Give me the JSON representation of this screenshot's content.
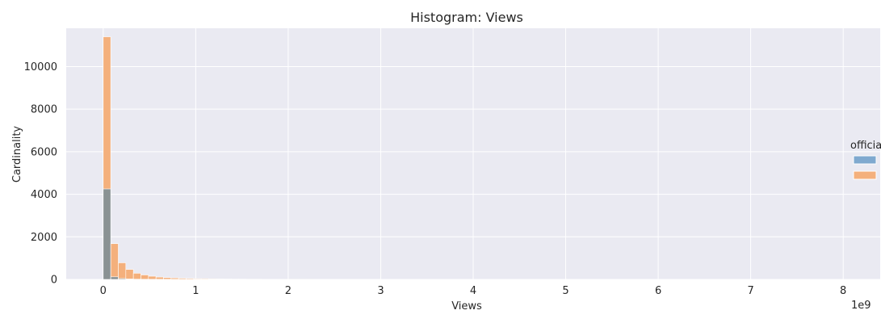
{
  "chart_data": {
    "type": "histogram",
    "title": "Histogram: Views",
    "xlabel": "Views",
    "ylabel": "Cardinality",
    "x_offset_label": "1e9",
    "xlim": [
      -0.4,
      8.4
    ],
    "ylim": [
      0,
      11800
    ],
    "x_ticks": [
      0,
      1,
      2,
      3,
      4,
      5,
      6,
      7,
      8
    ],
    "x_tick_labels": [
      "0",
      "1",
      "2",
      "3",
      "4",
      "5",
      "6",
      "7",
      "8"
    ],
    "y_ticks": [
      0,
      2000,
      4000,
      6000,
      8000,
      10000
    ],
    "y_tick_labels": [
      "0",
      "2000",
      "4000",
      "6000",
      "8000",
      "10000"
    ],
    "bin_width": 0.0815,
    "bin_start": 0.0,
    "grid": true,
    "legend": {
      "title": "official",
      "placement": "right",
      "entries": [
        "",
        ""
      ]
    },
    "colors": {
      "series_a": "#7fa9cf",
      "series_b": "#f4b07c",
      "overlap": "#8a9294",
      "background": "#eaeaf2",
      "grid": "#ffffff"
    },
    "series": [
      {
        "values": [
          4250,
          120,
          40,
          20,
          10,
          6,
          4,
          3,
          2,
          2,
          1,
          1,
          1,
          0,
          0,
          0,
          0,
          0,
          0,
          0,
          0,
          0,
          0,
          0,
          0,
          0,
          0,
          0
        ]
      },
      {
        "values": [
          11400,
          1680,
          780,
          470,
          290,
          210,
          150,
          110,
          85,
          70,
          55,
          45,
          35,
          30,
          25,
          20,
          18,
          15,
          12,
          10,
          9,
          8,
          7,
          6,
          5,
          4,
          3,
          2
        ]
      }
    ]
  }
}
